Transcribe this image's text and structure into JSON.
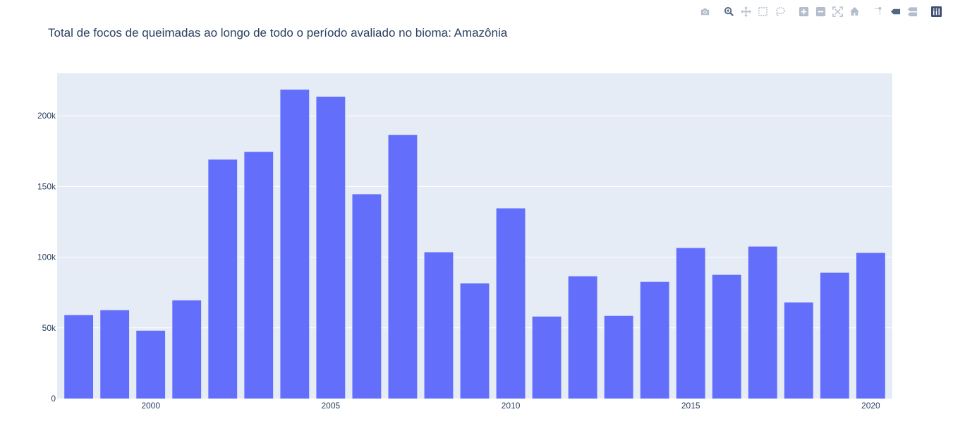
{
  "modebar": {
    "buttons": [
      "camera-icon",
      "zoom-icon",
      "pan-icon",
      "box-select-icon",
      "lasso-select-icon",
      "zoom-in-icon",
      "zoom-out-icon",
      "autoscale-icon",
      "reset-axes-icon",
      "spike-lines-icon",
      "hover-closest-icon",
      "hover-compare-icon",
      "plotly-logo-icon"
    ],
    "active": "zoom-icon"
  },
  "colors": {
    "bar": "#636efa",
    "plot_bg": "#e5ecf6",
    "grid": "#ffffff",
    "text": "#2a3f5f",
    "modebar_icon": "#b3bdcb",
    "modebar_active": "#506784"
  },
  "chart_data": {
    "type": "bar",
    "title": "Total de focos de queimadas ao longo de todo o período avaliado no bioma: Amazônia",
    "xlabel": "",
    "ylabel": "",
    "x": [
      1998,
      1999,
      2000,
      2001,
      2002,
      2003,
      2004,
      2005,
      2006,
      2007,
      2008,
      2009,
      2010,
      2011,
      2012,
      2013,
      2014,
      2015,
      2016,
      2017,
      2018,
      2019,
      2020
    ],
    "values": [
      59000,
      62500,
      48000,
      69500,
      169000,
      174500,
      218500,
      213500,
      144500,
      186500,
      103500,
      81500,
      134500,
      58000,
      86500,
      58500,
      82500,
      106500,
      87500,
      107500,
      68000,
      89000,
      103000
    ],
    "ylim": [
      0,
      230000
    ],
    "xlim": [
      1997.4,
      2020.6
    ],
    "y_ticks": [
      0,
      50000,
      100000,
      150000,
      200000
    ],
    "y_tick_labels": [
      "0",
      "50k",
      "100k",
      "150k",
      "200k"
    ],
    "x_ticks": [
      2000,
      2005,
      2010,
      2015,
      2020
    ],
    "x_tick_labels": [
      "2000",
      "2005",
      "2010",
      "2015",
      "2020"
    ],
    "grid": true,
    "legend": "none"
  }
}
